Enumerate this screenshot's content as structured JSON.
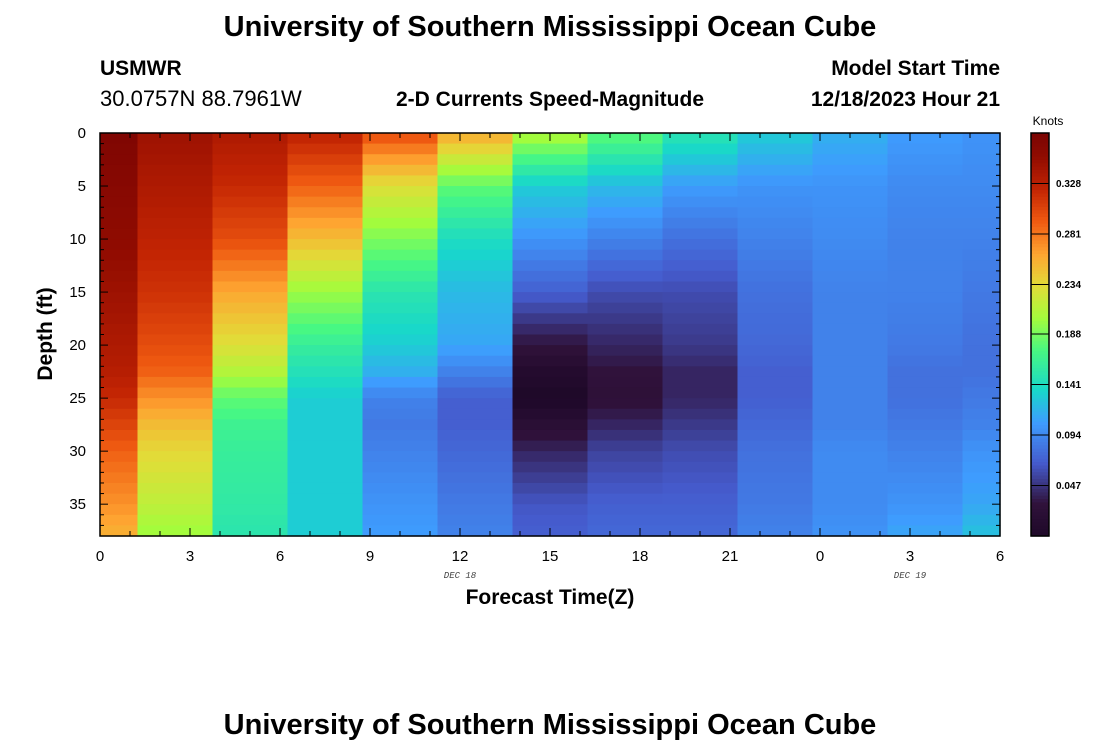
{
  "header": {
    "title": "University of Southern Mississippi Ocean Cube",
    "station": "USMWR",
    "coords": "30.0757N  88.7961W",
    "plot_title": "2-D Currents Speed-Magnitude",
    "model_label": "Model Start Time",
    "model_time": "12/18/2023 Hour 21"
  },
  "footer": {
    "title": "University of Southern Mississippi Ocean Cube"
  },
  "chart_data": {
    "type": "heatmap",
    "title": "2-D Currents Speed-Magnitude",
    "xlabel": "Forecast Time(Z)",
    "ylabel": "Depth (ft)",
    "x_hours": [
      0,
      3,
      6,
      9,
      12,
      15,
      18,
      21,
      24,
      27,
      30
    ],
    "x_tick_labels": [
      "0",
      "3",
      "6",
      "9",
      "12",
      "15",
      "18",
      "21",
      "0",
      "3",
      "6"
    ],
    "xlim": [
      0,
      30
    ],
    "date_labels": [
      {
        "text": "DEC 18",
        "hour": 12
      },
      {
        "text": "DEC 19",
        "hour": 27
      }
    ],
    "y_ticks": [
      0,
      5,
      10,
      15,
      20,
      25,
      30,
      35
    ],
    "ylim": [
      38,
      0
    ],
    "colorbar": {
      "unit": "Knots",
      "min": 0.0,
      "max": 0.375,
      "tick_values": [
        0.047,
        0.094,
        0.141,
        0.188,
        0.234,
        0.281,
        0.328
      ],
      "tick_labels": [
        "0.047",
        "0.094",
        "0.141",
        "0.188",
        "0.234",
        "0.281",
        "0.328"
      ]
    },
    "column_hours": [
      0,
      2.5,
      5,
      7.5,
      10,
      12.5,
      15,
      17.5,
      20,
      22.5,
      25,
      27.5,
      30
    ],
    "depth_profile": [
      0,
      5,
      10,
      15,
      20,
      22.5,
      25,
      27.5,
      30,
      35,
      38
    ],
    "speed_knots": [
      [
        0.37,
        0.362,
        0.355,
        0.345,
        0.335,
        0.33,
        0.32,
        0.305,
        0.29,
        0.27,
        0.255
      ],
      [
        0.345,
        0.335,
        0.325,
        0.315,
        0.3,
        0.29,
        0.27,
        0.25,
        0.235,
        0.215,
        0.2
      ],
      [
        0.335,
        0.32,
        0.3,
        0.26,
        0.23,
        0.21,
        0.18,
        0.165,
        0.16,
        0.155,
        0.15
      ],
      [
        0.325,
        0.29,
        0.25,
        0.2,
        0.16,
        0.145,
        0.13,
        0.13,
        0.13,
        0.13,
        0.13
      ],
      [
        0.3,
        0.23,
        0.19,
        0.15,
        0.13,
        0.115,
        0.09,
        0.085,
        0.09,
        0.1,
        0.105
      ],
      [
        0.26,
        0.18,
        0.14,
        0.12,
        0.11,
        0.09,
        0.07,
        0.07,
        0.075,
        0.085,
        0.09
      ],
      [
        0.21,
        0.13,
        0.1,
        0.07,
        0.03,
        0.01,
        0.0,
        0.02,
        0.04,
        0.065,
        0.07
      ],
      [
        0.18,
        0.12,
        0.09,
        0.06,
        0.04,
        0.03,
        0.025,
        0.04,
        0.055,
        0.07,
        0.075
      ],
      [
        0.15,
        0.105,
        0.08,
        0.06,
        0.05,
        0.04,
        0.04,
        0.05,
        0.06,
        0.07,
        0.075
      ],
      [
        0.13,
        0.1,
        0.09,
        0.08,
        0.075,
        0.07,
        0.07,
        0.075,
        0.08,
        0.085,
        0.09
      ],
      [
        0.115,
        0.1,
        0.095,
        0.09,
        0.09,
        0.09,
        0.09,
        0.09,
        0.095,
        0.095,
        0.1
      ],
      [
        0.105,
        0.095,
        0.09,
        0.09,
        0.085,
        0.08,
        0.08,
        0.085,
        0.09,
        0.1,
        0.11
      ],
      [
        0.1,
        0.095,
        0.09,
        0.085,
        0.08,
        0.08,
        0.085,
        0.09,
        0.1,
        0.11,
        0.125
      ]
    ]
  }
}
